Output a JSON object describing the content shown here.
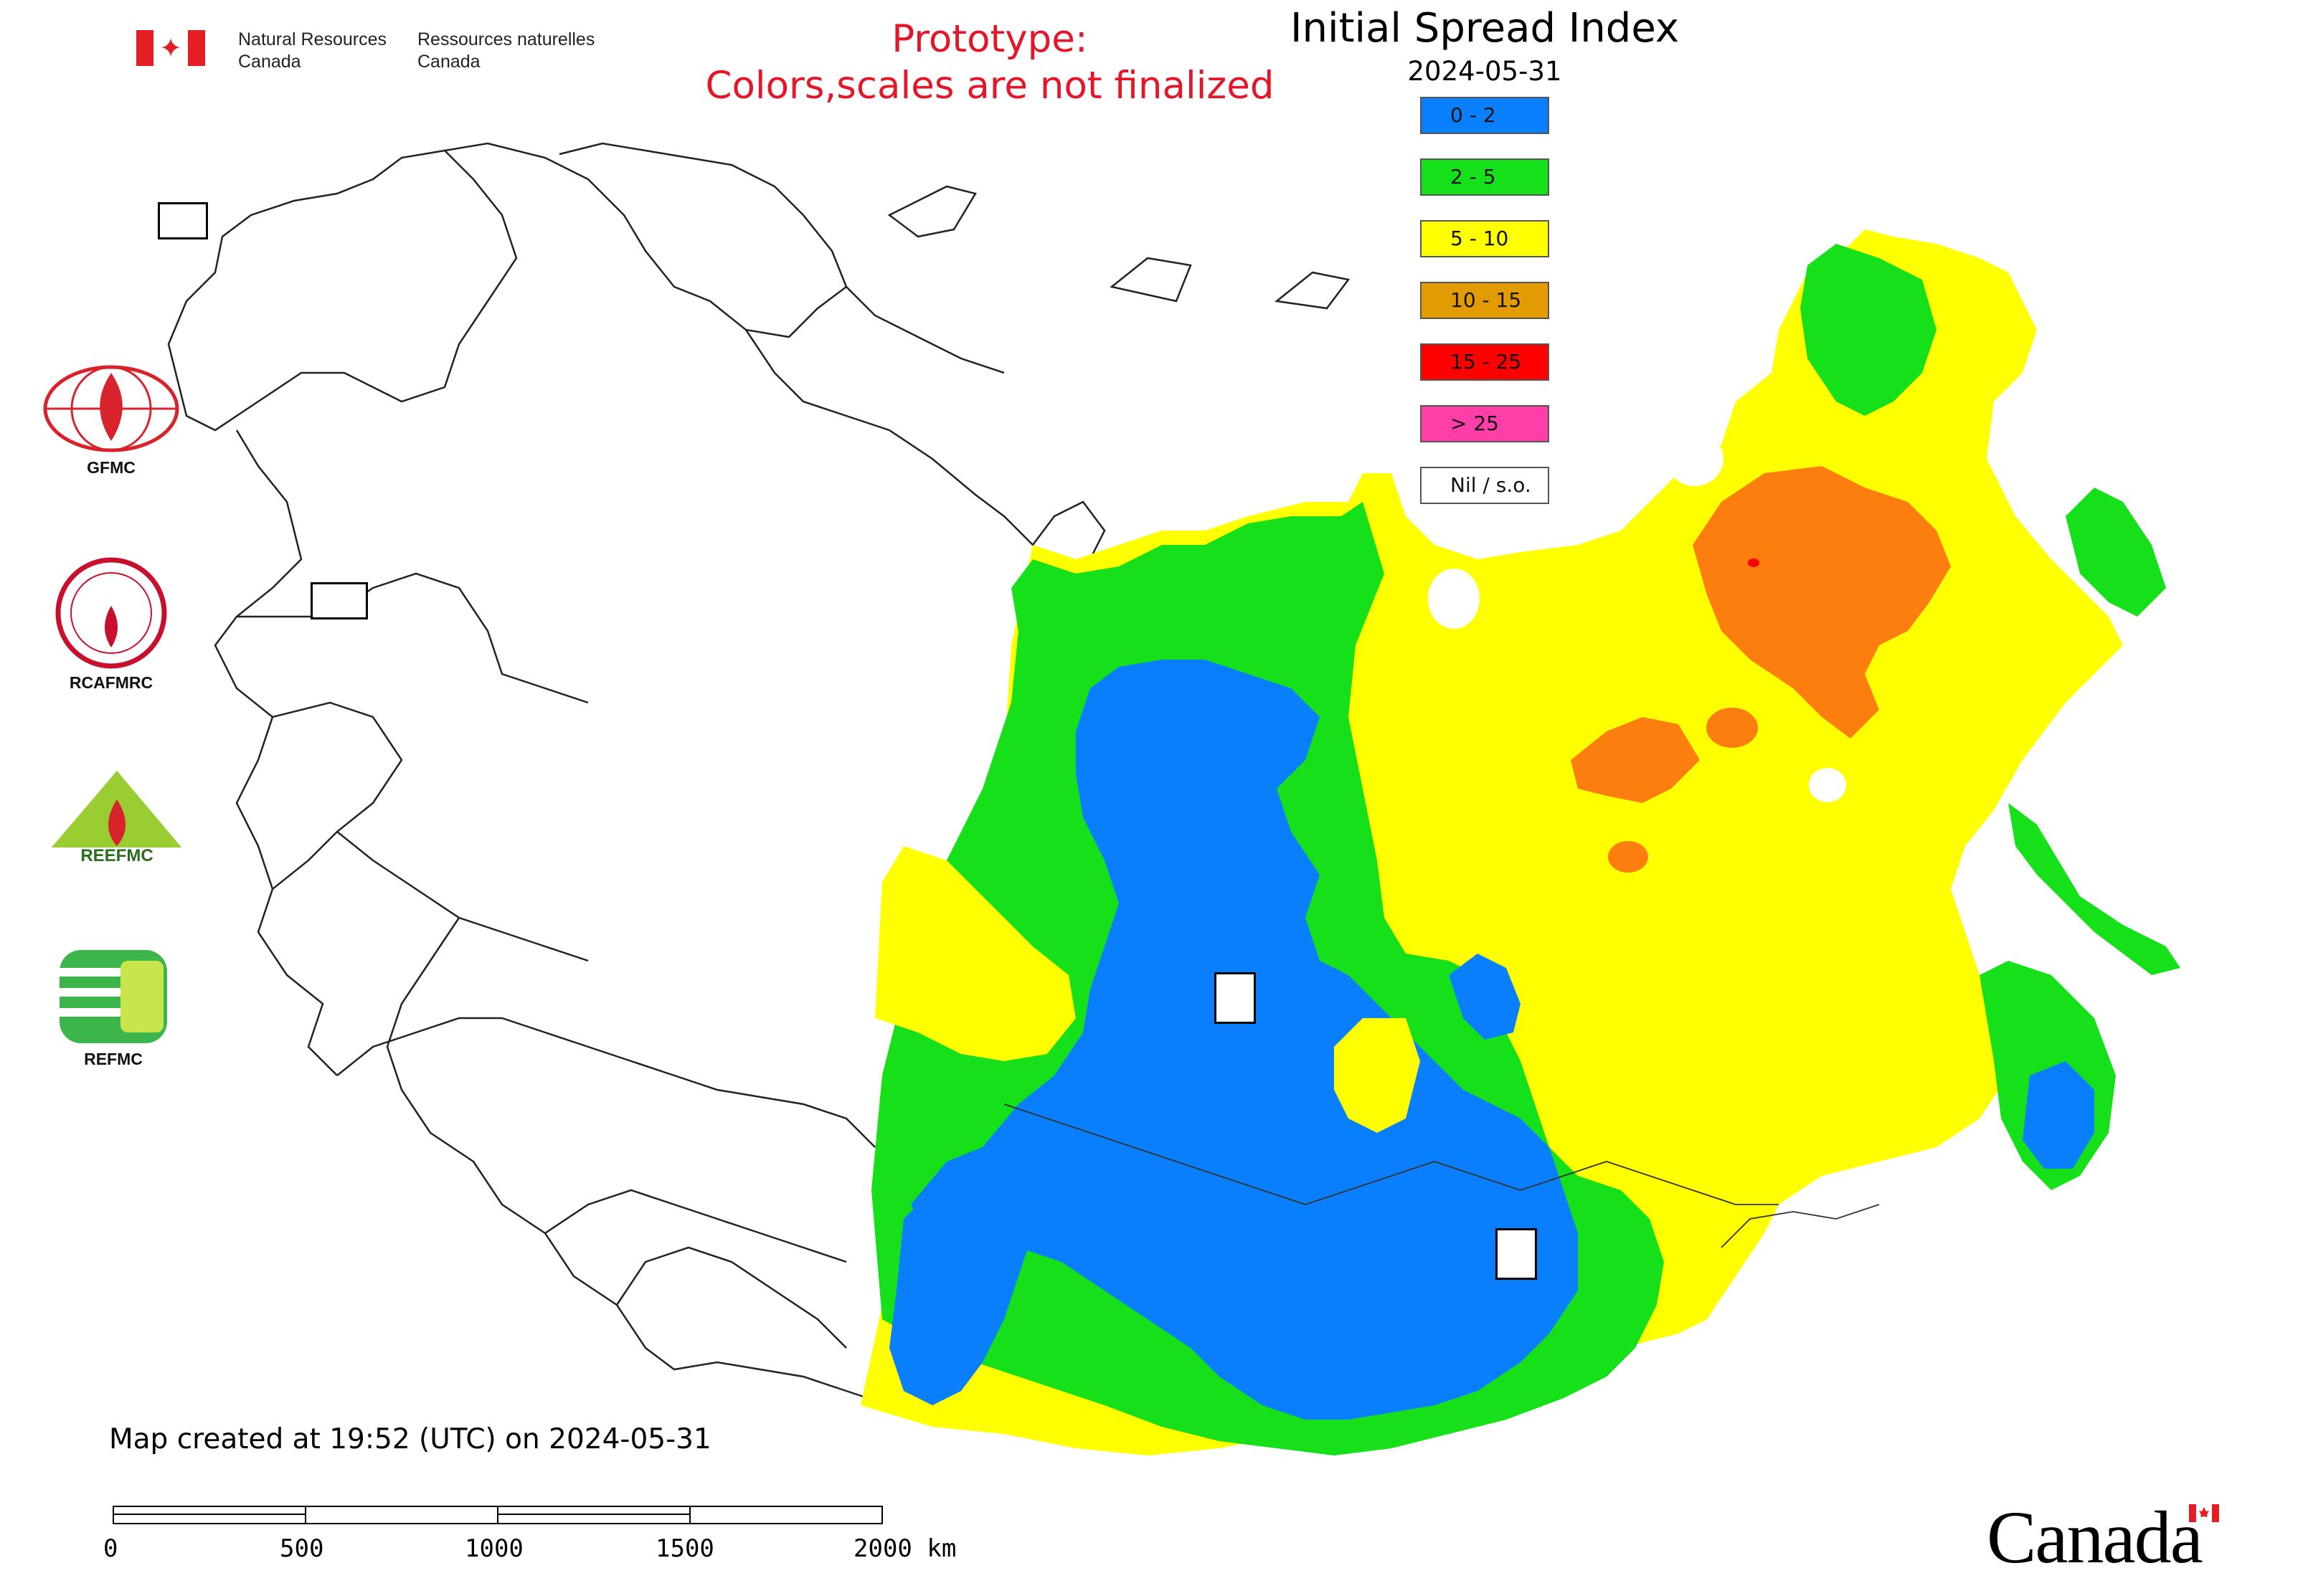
{
  "header": {
    "department_en": [
      "Natural Resources",
      "Canada"
    ],
    "department_fr": [
      "Ressources naturelles",
      "Canada"
    ],
    "prototype_note": [
      "Prototype:",
      "Colors,scales are not finalized"
    ]
  },
  "map": {
    "title": "Initial Spread Index",
    "date": "2024-05-31",
    "created_note": "Map created at 19:52 (UTC) on 2024-05-31"
  },
  "legend": [
    {
      "label": "0 - 2",
      "color": "#0a7ffe"
    },
    {
      "label": "2 - 5",
      "color": "#15e01a"
    },
    {
      "label": "5 - 10",
      "color": "#ffff00"
    },
    {
      "label": "10 - 15",
      "color": "#e39b02"
    },
    {
      "label": "15 - 25",
      "color": "#ff0000"
    },
    {
      "label": "> 25",
      "color": "#ff3fa8"
    },
    {
      "label": "Nil / s.o.",
      "color": "#ffffff"
    }
  ],
  "orgs": [
    {
      "label": "GFMC"
    },
    {
      "label": "RCAFMRC"
    },
    {
      "label": "REEFMC"
    },
    {
      "label": "REFMC"
    }
  ],
  "scale": {
    "ticks": [
      "0",
      "500",
      "1000",
      "1500",
      "2000 km"
    ]
  },
  "footer": {
    "wordmark": "Canada"
  },
  "colors": {
    "orange_region": "#fc7e0f",
    "boundary": "#000000"
  }
}
